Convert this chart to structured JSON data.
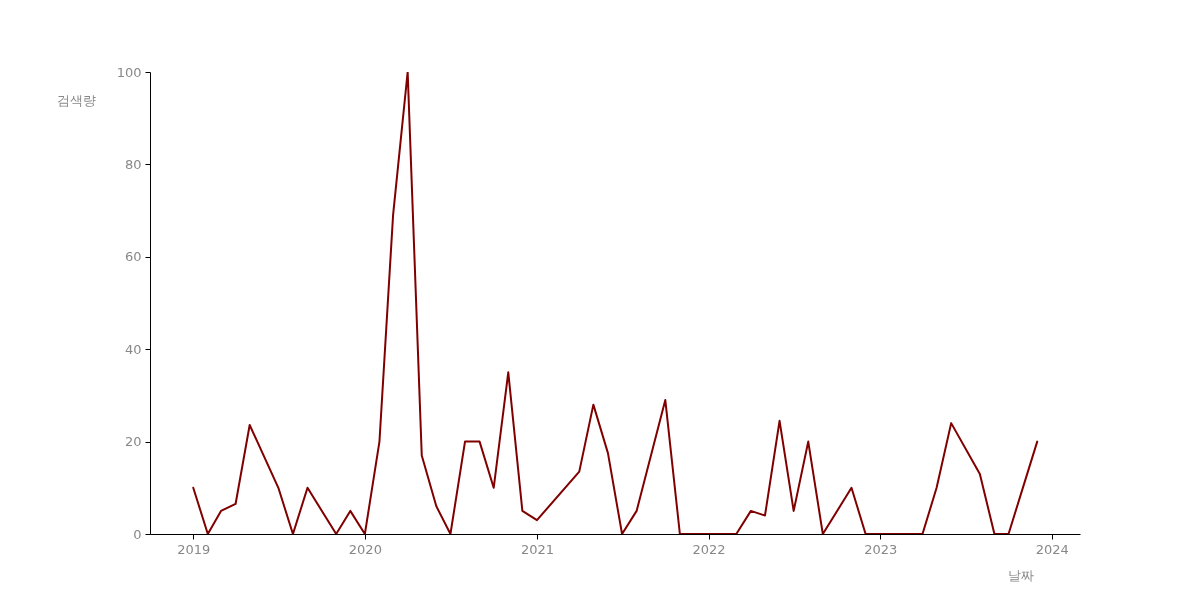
{
  "chart_data": {
    "type": "line",
    "xlabel": "날짜",
    "ylabel": "검색량",
    "x": [
      "2019-01",
      "2019-02",
      "2019-03",
      "2019-04",
      "2019-05",
      "2019-07",
      "2019-08",
      "2019-09",
      "2019-11",
      "2019-12",
      "2020-01",
      "2020-02",
      "2020-03",
      "2020-04",
      "2020-05",
      "2020-06",
      "2020-07",
      "2020-08",
      "2020-09",
      "2020-10",
      "2020-11",
      "2020-12",
      "2021-01",
      "2021-04",
      "2021-05",
      "2021-06",
      "2021-07",
      "2021-08",
      "2021-10",
      "2021-11",
      "2022-03",
      "2022-04",
      "2022-05",
      "2022-06",
      "2022-07",
      "2022-08",
      "2022-09",
      "2022-11",
      "2022-12",
      "2023-04",
      "2023-05",
      "2023-06",
      "2023-08",
      "2023-09",
      "2023-10",
      "2023-12"
    ],
    "values": [
      10,
      0,
      5,
      6.5,
      23.6,
      10,
      0,
      10,
      0,
      5,
      0,
      20,
      69,
      100,
      17,
      6,
      0,
      20,
      20,
      10,
      35,
      5,
      3,
      13.5,
      28,
      17.5,
      0,
      5,
      29,
      0,
      0,
      5,
      4,
      24.5,
      5,
      20,
      0,
      10,
      0,
      0,
      10,
      24,
      13,
      0,
      0,
      20
    ],
    "color": "#800000",
    "xlim": [
      "2018-10",
      "2024-03"
    ],
    "xticks": [
      "2019",
      "2020",
      "2021",
      "2022",
      "2023",
      "2024"
    ],
    "ylim": [
      0,
      100
    ],
    "yticks": [
      0,
      20,
      40,
      60,
      80,
      100
    ]
  }
}
